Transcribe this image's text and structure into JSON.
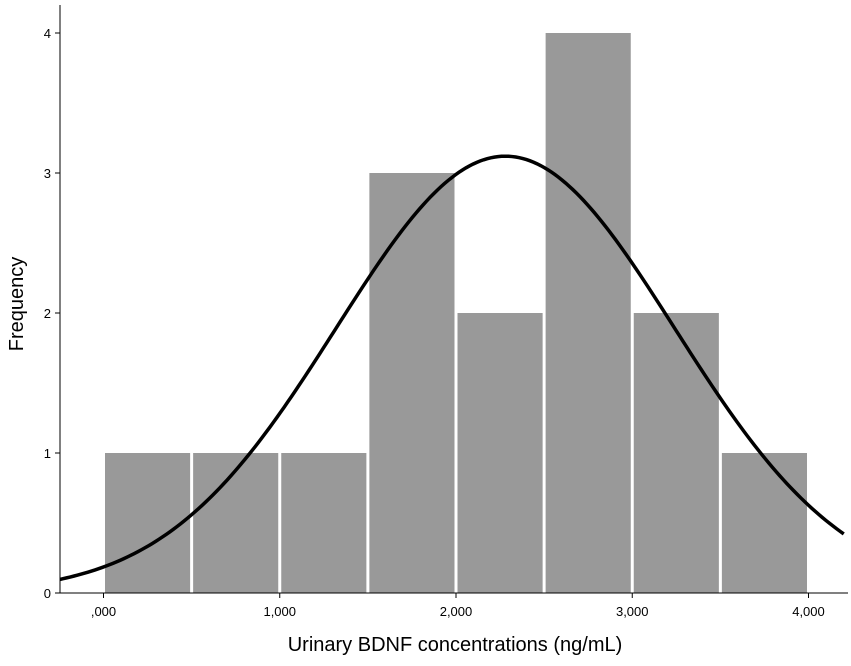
{
  "chart_data": {
    "type": "bar",
    "subtype": "histogram",
    "title": "",
    "xlabel": "Urinary BDNF concentrations (ng/mL)",
    "ylabel": "Frequency",
    "xlim": [
      -0.25,
      4.2
    ],
    "ylim": [
      0,
      4.2
    ],
    "x_ticks": [
      {
        "value": 0,
        "label": ",000"
      },
      {
        "value": 1,
        "label": "1,000"
      },
      {
        "value": 2,
        "label": "2,000"
      },
      {
        "value": 3,
        "label": "3,000"
      },
      {
        "value": 4,
        "label": "4,000"
      }
    ],
    "y_ticks": [
      {
        "value": 0,
        "label": "0"
      },
      {
        "value": 1,
        "label": "1"
      },
      {
        "value": 2,
        "label": "2"
      },
      {
        "value": 3,
        "label": "3"
      },
      {
        "value": 4,
        "label": "4"
      }
    ],
    "bins": [
      {
        "start": 0.0,
        "end": 0.5,
        "count": 1
      },
      {
        "start": 0.5,
        "end": 1.0,
        "count": 1
      },
      {
        "start": 1.0,
        "end": 1.5,
        "count": 1
      },
      {
        "start": 1.5,
        "end": 2.0,
        "count": 3
      },
      {
        "start": 2.0,
        "end": 2.5,
        "count": 2
      },
      {
        "start": 2.5,
        "end": 3.0,
        "count": 4
      },
      {
        "start": 3.0,
        "end": 3.5,
        "count": 2
      },
      {
        "start": 3.5,
        "end": 4.0,
        "count": 1
      }
    ],
    "normal_curve": {
      "mean": 2.28,
      "sd": 0.96,
      "peak": 3.12
    },
    "grid": false,
    "legend": "none",
    "colors": {
      "bar_fill": "#999999",
      "bar_edge": "#ffffff",
      "curve": "#000000",
      "axis": "#000000"
    }
  }
}
